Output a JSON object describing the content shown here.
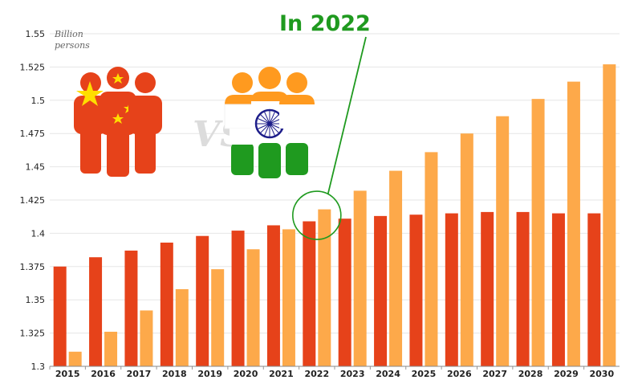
{
  "colors": {
    "china": "#e6421a",
    "india": "#fda94a",
    "callout": "#1f9a1f",
    "grid": "#e6e6e6",
    "india_saffron": "#ff9a1f",
    "india_green": "#1f9a1f",
    "india_navy": "#1d1d8a",
    "china_star": "#ffde00",
    "vs_text": "#dcdcdc"
  },
  "annotation": {
    "text": "In 2022",
    "highlight_category": "2022"
  },
  "illustration": {
    "china_icon": "china-people-icon",
    "india_icon": "india-people-icon",
    "vs_text": "VS"
  },
  "chart_data": {
    "type": "bar",
    "title": "",
    "ylabel": "Billion persons",
    "xlabel": "",
    "categories": [
      "2015",
      "2016",
      "2017",
      "2018",
      "2019",
      "2020",
      "2021",
      "2022",
      "2023",
      "2024",
      "2025",
      "2026",
      "2027",
      "2028",
      "2029",
      "2030"
    ],
    "series": [
      {
        "key": "china",
        "values": [
          1.375,
          1.382,
          1.387,
          1.393,
          1.398,
          1.402,
          1.406,
          1.409,
          1.411,
          1.413,
          1.414,
          1.415,
          1.416,
          1.416,
          1.415,
          1.415
        ]
      },
      {
        "key": "india",
        "values": [
          1.311,
          1.326,
          1.342,
          1.358,
          1.373,
          1.388,
          1.403,
          1.418,
          1.432,
          1.447,
          1.461,
          1.475,
          1.488,
          1.501,
          1.514,
          1.527
        ]
      }
    ],
    "ylim": [
      1.3,
      1.55
    ],
    "yticks": [
      "1.3",
      "1.325",
      "1.35",
      "1.375",
      "1.4",
      "1.425",
      "1.45",
      "1.475",
      "1.5",
      "1.525",
      "1.55"
    ],
    "grid": true,
    "legend": "none"
  }
}
